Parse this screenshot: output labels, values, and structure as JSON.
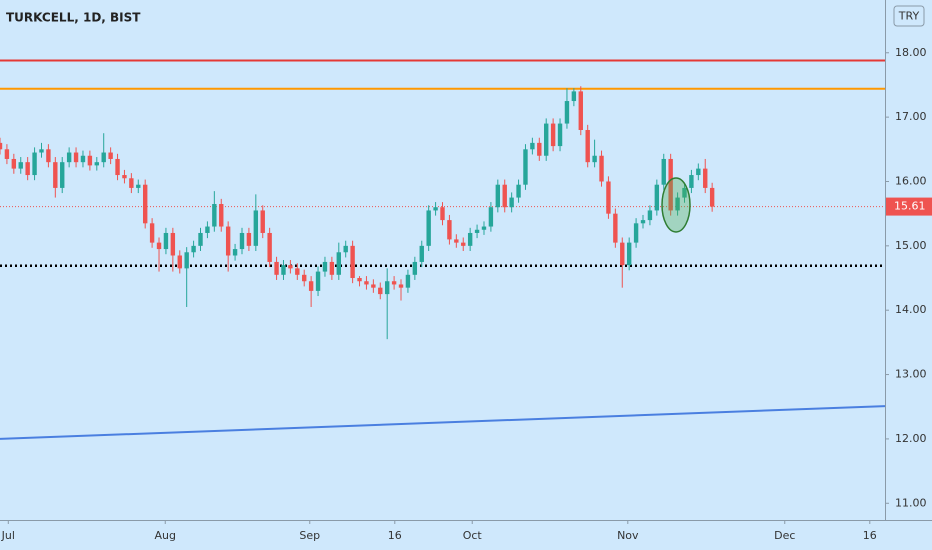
{
  "chart_data": {
    "type": "candlestick",
    "title": "TURKCELL, 1D, BIST",
    "currency": "TRY",
    "up_color": "#26a69a",
    "down_color": "#ef5350",
    "xlim": [
      0,
      128
    ],
    "xticks": [
      {
        "value": 1.2,
        "label": "Jul"
      },
      {
        "value": 23.9,
        "label": "Aug"
      },
      {
        "value": 44.8,
        "label": "Sep"
      },
      {
        "value": 57.1,
        "label": "16"
      },
      {
        "value": 68.3,
        "label": "Oct"
      },
      {
        "value": 90.8,
        "label": "Nov"
      },
      {
        "value": 113.5,
        "label": "Dec"
      },
      {
        "value": 125.8,
        "label": "16"
      }
    ],
    "ylim": [
      10.74,
      18.82
    ],
    "yticks": [
      {
        "value": 11,
        "label": "11.00"
      },
      {
        "value": 12,
        "label": "12.00"
      },
      {
        "value": 13,
        "label": "13.00"
      },
      {
        "value": 14,
        "label": "14.00"
      },
      {
        "value": 15,
        "label": "15.00"
      },
      {
        "value": 16,
        "label": "16.00"
      },
      {
        "value": 17,
        "label": "17.00"
      },
      {
        "value": 18,
        "label": "18.00"
      }
    ],
    "x": [
      0,
      1,
      2,
      3,
      4,
      5,
      6,
      7,
      8,
      9,
      10,
      11,
      12,
      13,
      14,
      15,
      16,
      17,
      18,
      19,
      20,
      21,
      22,
      23,
      24,
      25,
      26,
      27,
      28,
      29,
      30,
      31,
      32,
      33,
      34,
      35,
      36,
      37,
      38,
      39,
      40,
      41,
      42,
      43,
      44,
      45,
      46,
      47,
      48,
      49,
      50,
      51,
      52,
      53,
      54,
      55,
      56,
      57,
      58,
      59,
      60,
      61,
      62,
      63,
      64,
      65,
      66,
      67,
      68,
      69,
      70,
      71,
      72,
      73,
      74,
      75,
      76,
      77,
      78,
      79,
      80,
      81,
      82,
      83,
      84,
      85,
      86,
      87,
      88,
      89,
      90,
      91,
      92,
      93,
      94,
      95,
      96,
      97,
      98,
      99,
      100,
      101,
      102,
      103
    ],
    "open": [
      16.6,
      16.5,
      16.35,
      16.2,
      16.3,
      16.1,
      16.45,
      16.5,
      16.3,
      15.9,
      16.3,
      16.45,
      16.3,
      16.4,
      16.25,
      16.3,
      16.45,
      16.35,
      16.1,
      16.05,
      15.9,
      15.95,
      15.35,
      15.05,
      14.95,
      15.2,
      14.85,
      14.65,
      14.9,
      15.0,
      15.2,
      15.3,
      15.65,
      15.3,
      14.85,
      14.95,
      15.2,
      15.0,
      15.55,
      15.2,
      14.75,
      14.55,
      14.7,
      14.65,
      14.55,
      14.45,
      14.3,
      14.6,
      14.75,
      14.55,
      14.9,
      15.0,
      14.5,
      14.45,
      14.4,
      14.35,
      14.25,
      14.45,
      14.4,
      14.35,
      14.55,
      14.75,
      15.0,
      15.55,
      15.6,
      15.4,
      15.1,
      15.05,
      15.0,
      15.2,
      15.25,
      15.3,
      15.6,
      15.95,
      15.6,
      15.75,
      15.95,
      16.5,
      16.6,
      16.4,
      16.9,
      16.55,
      16.9,
      17.25,
      17.4,
      16.8,
      16.3,
      16.4,
      16.0,
      15.5,
      15.05,
      14.7,
      15.05,
      15.35,
      15.4,
      15.55,
      15.95,
      16.35,
      15.55,
      15.75,
      15.9,
      16.1,
      16.2,
      15.9
    ],
    "high": [
      16.68,
      16.58,
      16.43,
      16.38,
      16.38,
      16.53,
      16.6,
      16.58,
      16.38,
      16.38,
      16.53,
      16.53,
      16.48,
      16.48,
      16.38,
      16.75,
      16.53,
      16.43,
      16.18,
      16.13,
      16.03,
      16.03,
      15.43,
      15.13,
      15.28,
      15.28,
      14.93,
      14.98,
      15.08,
      15.28,
      15.38,
      15.85,
      15.73,
      15.38,
      15.03,
      15.28,
      15.28,
      15.8,
      15.63,
      15.28,
      14.83,
      14.78,
      14.78,
      14.73,
      14.63,
      14.53,
      14.68,
      14.83,
      14.83,
      15.05,
      15.08,
      15.08,
      14.53,
      14.53,
      14.48,
      14.43,
      14.65,
      14.53,
      14.48,
      14.63,
      14.83,
      15.08,
      15.63,
      15.68,
      15.68,
      15.48,
      15.18,
      15.13,
      15.28,
      15.33,
      15.38,
      15.68,
      16.03,
      16.03,
      15.83,
      16.03,
      16.58,
      16.68,
      16.68,
      16.98,
      16.98,
      16.98,
      17.45,
      17.45,
      17.48,
      16.88,
      16.65,
      16.48,
      16.08,
      15.58,
      15.13,
      15.13,
      15.43,
      15.48,
      15.63,
      16.03,
      16.43,
      16.43,
      15.83,
      15.98,
      16.18,
      16.28,
      16.35,
      15.98
    ],
    "low": [
      16.42,
      16.27,
      16.12,
      16.12,
      16.02,
      16.02,
      16.37,
      16.22,
      15.75,
      15.82,
      16.22,
      16.22,
      16.22,
      16.17,
      16.17,
      16.22,
      16.27,
      16.02,
      15.97,
      15.82,
      15.82,
      15.27,
      14.97,
      14.6,
      14.87,
      14.6,
      14.57,
      14.05,
      14.82,
      14.92,
      15.12,
      15.22,
      15.22,
      14.6,
      14.77,
      14.87,
      14.92,
      14.92,
      15.12,
      14.67,
      14.47,
      14.47,
      14.57,
      14.47,
      14.37,
      14.05,
      14.22,
      14.52,
      14.47,
      14.47,
      14.82,
      14.42,
      14.37,
      14.32,
      14.27,
      14.17,
      13.55,
      14.32,
      14.15,
      14.27,
      14.47,
      14.67,
      14.92,
      15.47,
      15.32,
      15.02,
      14.97,
      14.92,
      14.92,
      15.12,
      15.17,
      15.22,
      15.52,
      15.52,
      15.52,
      15.67,
      15.87,
      16.42,
      16.32,
      16.32,
      16.47,
      16.47,
      16.82,
      17.17,
      16.72,
      16.22,
      16.22,
      15.92,
      15.42,
      14.97,
      14.35,
      14.62,
      14.97,
      15.27,
      15.32,
      15.47,
      15.87,
      15.47,
      15.47,
      15.67,
      15.82,
      16.02,
      15.82,
      15.53
    ],
    "close": [
      16.5,
      16.35,
      16.2,
      16.3,
      16.1,
      16.45,
      16.5,
      16.3,
      15.9,
      16.3,
      16.45,
      16.3,
      16.4,
      16.25,
      16.3,
      16.45,
      16.35,
      16.1,
      16.05,
      15.9,
      15.95,
      15.35,
      15.05,
      14.95,
      15.2,
      14.85,
      14.65,
      14.9,
      15.0,
      15.2,
      15.3,
      15.65,
      15.3,
      14.85,
      14.95,
      15.2,
      15.0,
      15.55,
      15.2,
      14.75,
      14.55,
      14.7,
      14.65,
      14.55,
      14.45,
      14.3,
      14.6,
      14.75,
      14.55,
      14.9,
      15.0,
      14.5,
      14.45,
      14.4,
      14.35,
      14.25,
      14.45,
      14.4,
      14.35,
      14.55,
      14.75,
      15.0,
      15.55,
      15.6,
      15.4,
      15.1,
      15.05,
      15.0,
      15.2,
      15.25,
      15.3,
      15.6,
      15.95,
      15.6,
      15.75,
      15.95,
      16.5,
      16.6,
      16.4,
      16.9,
      16.55,
      16.9,
      17.25,
      17.4,
      16.8,
      16.3,
      16.4,
      16.0,
      15.5,
      15.05,
      14.7,
      15.05,
      15.35,
      15.4,
      15.55,
      15.95,
      16.35,
      15.55,
      15.75,
      15.9,
      16.1,
      16.2,
      15.9,
      15.61
    ],
    "price_label": {
      "value": 15.61,
      "label": "15.61"
    },
    "hlines": [
      {
        "value": 17.88,
        "color": "#e53935",
        "style": "solid"
      },
      {
        "value": 17.44,
        "color": "#ff9800",
        "style": "solid"
      },
      {
        "value": 14.69,
        "color": "#000000",
        "style": "dotted"
      }
    ],
    "trendline": {
      "x": [
        0,
        128
      ],
      "y": [
        12.0,
        12.51
      ],
      "color": "#4a7fe0"
    }
  }
}
